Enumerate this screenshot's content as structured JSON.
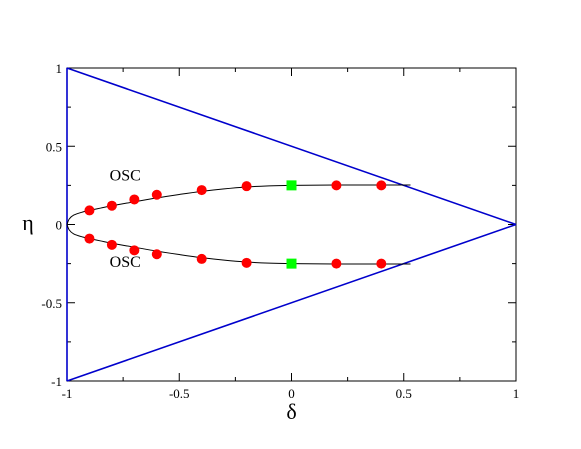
{
  "chart_data": {
    "type": "scatter",
    "title": "",
    "xlabel": "δ",
    "ylabel": "η",
    "xlim": [
      -1,
      1
    ],
    "ylim": [
      -1,
      1
    ],
    "xticks": [
      -1,
      -0.5,
      0,
      0.5,
      1
    ],
    "yticks": [
      -1,
      -0.5,
      0,
      0.5,
      1
    ],
    "xtick_labels": [
      "-1",
      "-0.5",
      "0",
      "0.5",
      "1"
    ],
    "ytick_labels": [
      "-1",
      "-0.5",
      "0",
      "0.5",
      "1"
    ],
    "minor_ticks_per_interval": 2,
    "grid": false,
    "annotations": [
      {
        "text": "OSC",
        "x": -0.81,
        "y": 0.28
      },
      {
        "text": "OSC",
        "x": -0.81,
        "y": -0.27
      }
    ],
    "boundary_lines": {
      "color": "#0000cc",
      "segments": [
        {
          "points": [
            [
              -1,
              1
            ],
            [
              1,
              0
            ]
          ]
        },
        {
          "points": [
            [
              -1,
              -1
            ],
            [
              1,
              0
            ]
          ]
        },
        {
          "points": [
            [
              -1,
              -1
            ],
            [
              -1,
              1
            ]
          ]
        }
      ]
    },
    "curves": {
      "color": "#000000",
      "upper": [
        [
          -1,
          0
        ],
        [
          -0.99,
          0.035
        ],
        [
          -0.97,
          0.06
        ],
        [
          -0.93,
          0.08
        ],
        [
          -0.9,
          0.09
        ],
        [
          -0.85,
          0.105
        ],
        [
          -0.8,
          0.12
        ],
        [
          -0.7,
          0.145
        ],
        [
          -0.6,
          0.17
        ],
        [
          -0.5,
          0.192
        ],
        [
          -0.4,
          0.212
        ],
        [
          -0.3,
          0.228
        ],
        [
          -0.2,
          0.24
        ],
        [
          -0.1,
          0.247
        ],
        [
          0,
          0.25
        ],
        [
          0.2,
          0.252
        ],
        [
          0.4,
          0.252
        ],
        [
          0.53,
          0.252
        ]
      ],
      "lower": [
        [
          -1,
          0
        ],
        [
          -0.99,
          -0.035
        ],
        [
          -0.97,
          -0.06
        ],
        [
          -0.93,
          -0.08
        ],
        [
          -0.9,
          -0.09
        ],
        [
          -0.85,
          -0.105
        ],
        [
          -0.8,
          -0.12
        ],
        [
          -0.7,
          -0.145
        ],
        [
          -0.6,
          -0.17
        ],
        [
          -0.5,
          -0.192
        ],
        [
          -0.4,
          -0.212
        ],
        [
          -0.3,
          -0.228
        ],
        [
          -0.2,
          -0.24
        ],
        [
          -0.1,
          -0.247
        ],
        [
          0,
          -0.25
        ],
        [
          0.2,
          -0.252
        ],
        [
          0.4,
          -0.252
        ],
        [
          0.53,
          -0.252
        ]
      ]
    },
    "series": [
      {
        "marker": "circle",
        "color": "#ff0000",
        "points": [
          [
            -0.9,
            0.09
          ],
          [
            -0.8,
            0.12
          ],
          [
            -0.7,
            0.16
          ],
          [
            -0.6,
            0.19
          ],
          [
            -0.4,
            0.22
          ],
          [
            -0.2,
            0.245
          ],
          [
            0.2,
            0.25
          ],
          [
            0.4,
            0.25
          ],
          [
            -0.9,
            -0.09
          ],
          [
            -0.8,
            -0.13
          ],
          [
            -0.7,
            -0.165
          ],
          [
            -0.6,
            -0.19
          ],
          [
            -0.4,
            -0.22
          ],
          [
            -0.2,
            -0.245
          ],
          [
            0.2,
            -0.25
          ],
          [
            0.4,
            -0.25
          ]
        ]
      },
      {
        "marker": "square",
        "color": "#00ff00",
        "points": [
          [
            0,
            0.25
          ],
          [
            0,
            -0.25
          ]
        ]
      }
    ]
  }
}
